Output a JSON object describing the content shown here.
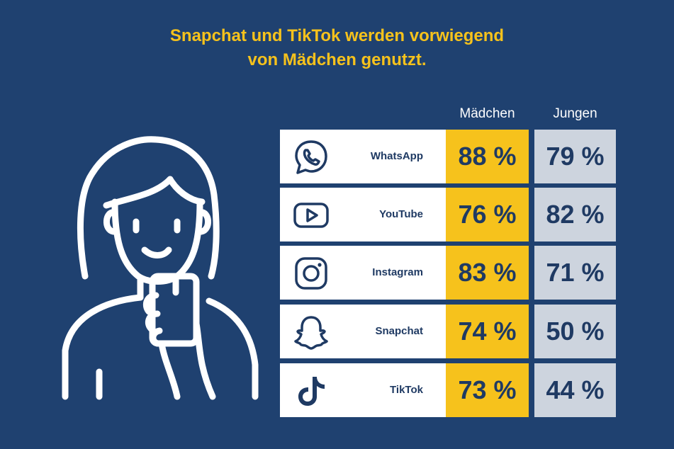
{
  "title": {
    "line1": "Snapchat und TikTok werden vorwiegend",
    "line2": "von Mädchen genutzt."
  },
  "colors": {
    "background": "#1f4170",
    "accent_yellow": "#f6c21c",
    "boys_gray": "#cdd4de",
    "text_dark": "#1f3a63"
  },
  "chart_data": {
    "type": "table",
    "columns": [
      "Mädchen",
      "Jungen"
    ],
    "rows": [
      {
        "app": "WhatsApp",
        "icon": "whatsapp-icon",
        "girls": "88 %",
        "boys": "79 %"
      },
      {
        "app": "YouTube",
        "icon": "youtube-icon",
        "girls": "76 %",
        "boys": "82 %"
      },
      {
        "app": "Instagram",
        "icon": "instagram-icon",
        "girls": "83 %",
        "boys": "71 %"
      },
      {
        "app": "Snapchat",
        "icon": "snapchat-icon",
        "girls": "74 %",
        "boys": "50 %"
      },
      {
        "app": "TikTok",
        "icon": "tiktok-icon",
        "girls": "73 %",
        "boys": "44 %"
      }
    ],
    "series": [
      {
        "name": "Mädchen",
        "values": [
          88,
          76,
          83,
          74,
          73
        ]
      },
      {
        "name": "Jungen",
        "values": [
          79,
          82,
          71,
          50,
          44
        ]
      }
    ],
    "categories": [
      "WhatsApp",
      "YouTube",
      "Instagram",
      "Snapchat",
      "TikTok"
    ]
  }
}
